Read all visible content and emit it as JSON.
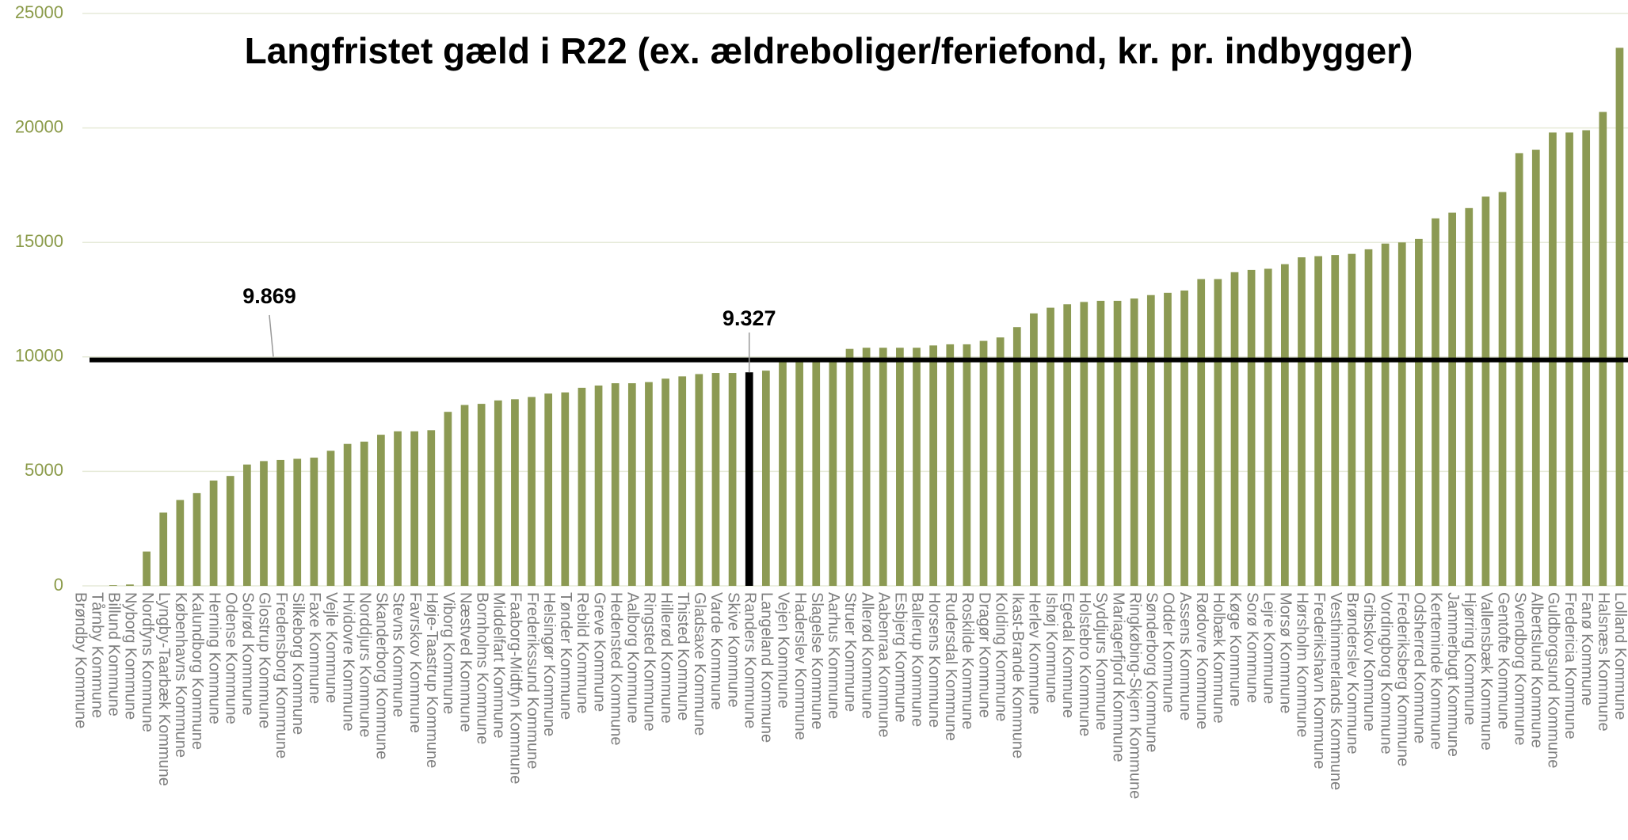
{
  "chart_data": {
    "type": "bar",
    "title": "Langfristet gæld i R22 (ex. ældreboliger/feriefond, kr. pr. indbygger)",
    "categories": [
      "Brøndby Kommune",
      "Tårnby Kommune",
      "Billund Kommune",
      "Nyborg Kommune",
      "Nordfyns Kommune",
      "Lyngby-Taarbæk Kommune",
      "Københavns Kommune",
      "Kalundborg Kommune",
      "Herning Kommune",
      "Odense Kommune",
      "Solrød Kommune",
      "Glostrup Kommune",
      "Fredensborg Kommune",
      "Silkeborg Kommune",
      "Faxe Kommune",
      "Vejle Kommune",
      "Hvidovre Kommune",
      "Norddjurs Kommune",
      "Skanderborg Kommune",
      "Stevns Kommune",
      "Favrskov Kommune",
      "Høje-Taastrup Kommune",
      "Viborg Kommune",
      "Næstved Kommune",
      "Bornholms Kommune",
      "Middelfart Kommune",
      "Faaborg-Midtfyn Kommune",
      "Frederikssund Kommune",
      "Helsingør Kommune",
      "Tønder Kommune",
      "Rebild Kommune",
      "Greve Kommune",
      "Hedensted Kommune",
      "Aalborg Kommune",
      "Ringsted Kommune",
      "Hillerød Kommune",
      "Thisted Kommune",
      "Gladsaxe Kommune",
      "Varde Kommune",
      "Skive Kommune",
      "Randers Kommune",
      "Langeland Kommune",
      "Vejen Kommune",
      "Haderslev Kommune",
      "Slagelse Kommune",
      "Aarhus Kommune",
      "Struer Kommune",
      "Allerød Kommune",
      "Aabenraa Kommune",
      "Esbjerg Kommune",
      "Ballerup Kommune",
      "Horsens Kommune",
      "Rudersdal Kommune",
      "Roskilde Kommune",
      "Dragør Kommune",
      "Kolding Kommune",
      "Ikast-Brande Kommune",
      "Herlev Kommune",
      "Ishøj Kommune",
      "Egedal Kommune",
      "Holstebro Kommune",
      "Syddjurs Kommune",
      "Mariagerfjord Kommune",
      "Ringkøbing-Skjern Kommune",
      "Sønderborg Kommune",
      "Odder Kommune",
      "Assens Kommune",
      "Rødovre Kommune",
      "Holbæk Kommune",
      "Køge Kommune",
      "Sorø Kommune",
      "Lejre Kommune",
      "Morsø Kommune",
      "Hørsholm Kommune",
      "Frederikshavn Kommune",
      "Vesthimmerlands Kommune",
      "Brønderslev Kommune",
      "Gribskov Kommune",
      "Vordingborg Kommune",
      "Frederiksberg Kommune",
      "Odsherred Kommune",
      "Kerteminde Kommune",
      "Jammerbugt Kommune",
      "Hjørring Kommune",
      "Vallensbæk Kommune",
      "Gentofte Kommune",
      "Svendborg Kommune",
      "Albertslund Kommune",
      "Guldborgsund Kommune",
      "Fredericia Kommune",
      "Fanø Kommune",
      "Halsnæs Kommune",
      "Lolland Kommune"
    ],
    "values": [
      0,
      0,
      30,
      60,
      1500,
      3200,
      3750,
      4050,
      4600,
      4800,
      5300,
      5450,
      5500,
      5550,
      5600,
      5900,
      6200,
      6300,
      6600,
      6750,
      6750,
      6800,
      7600,
      7900,
      7950,
      8100,
      8150,
      8250,
      8400,
      8450,
      8650,
      8750,
      8850,
      8850,
      8900,
      9050,
      9150,
      9250,
      9300,
      9300,
      9327,
      9400,
      9800,
      9850,
      9850,
      9900,
      10350,
      10400,
      10400,
      10400,
      10400,
      10500,
      10550,
      10550,
      10700,
      10850,
      11300,
      11900,
      12150,
      12300,
      12400,
      12450,
      12450,
      12550,
      12700,
      12800,
      12900,
      13400,
      13400,
      13700,
      13800,
      13850,
      14050,
      14350,
      14400,
      14450,
      14500,
      14700,
      14950,
      15000,
      15150,
      16050,
      16300,
      16500,
      17000,
      17200,
      18900,
      19050,
      19800,
      19800,
      19900,
      20700,
      23500
    ],
    "color": "#8c9a53",
    "highlight_color": "#000000",
    "ylim": [
      0,
      25000
    ],
    "yticks": [
      0,
      5000,
      10000,
      15000,
      20000,
      25000
    ],
    "grid": true,
    "annotations": [
      {
        "text": "9.869",
        "value": 9869
      },
      {
        "text": "9.327",
        "category": "Randers Kommune"
      }
    ]
  }
}
